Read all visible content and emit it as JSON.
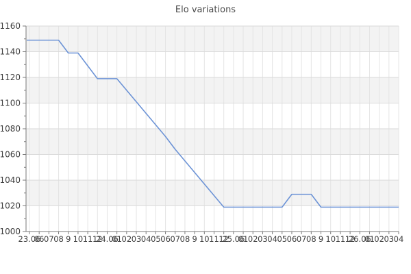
{
  "title": "Elo variations",
  "chart_data": {
    "type": "line",
    "title": "Elo variations",
    "x_categories": [
      "23.06",
      "06",
      "07",
      "08",
      "9",
      "10",
      "11",
      "12",
      "24.06",
      "01",
      "02",
      "03",
      "04",
      "05",
      "06",
      "07",
      "08",
      "9",
      "10",
      "11",
      "12",
      "25.06",
      "01",
      "02",
      "03",
      "04",
      "05",
      "06",
      "07",
      "08",
      "9",
      "10",
      "11",
      "12",
      "26.06",
      "01",
      "02",
      "03",
      "04"
    ],
    "values": [
      1149,
      1149,
      1149,
      1149,
      1139,
      1139,
      1129,
      1119,
      1119,
      1119,
      1110,
      1101,
      1092,
      1083,
      1074,
      1064,
      1055,
      1046,
      1037,
      1028,
      1019,
      1019,
      1019,
      1019,
      1019,
      1019,
      1019,
      1029,
      1029,
      1029,
      1019,
      1019,
      1019,
      1019,
      1019,
      1019,
      1019,
      1019,
      1019
    ],
    "ylim": [
      1000,
      1160
    ],
    "ytick_step": 20,
    "ytick_values": [
      1000,
      1020,
      1040,
      1060,
      1080,
      1100,
      1120,
      1140,
      1160
    ],
    "grid": "on",
    "legend": "none",
    "colors": {
      "series_line": "#6c93d6",
      "band_fill": "#f3f3f3",
      "v_gridline": "#e4e4e4",
      "h_gridline": "#dadada",
      "axis": "#7a7a7a",
      "tick": "#7a7a7a",
      "tick_label": "#3d3d3d",
      "title_text": "#4a4a4a"
    }
  }
}
